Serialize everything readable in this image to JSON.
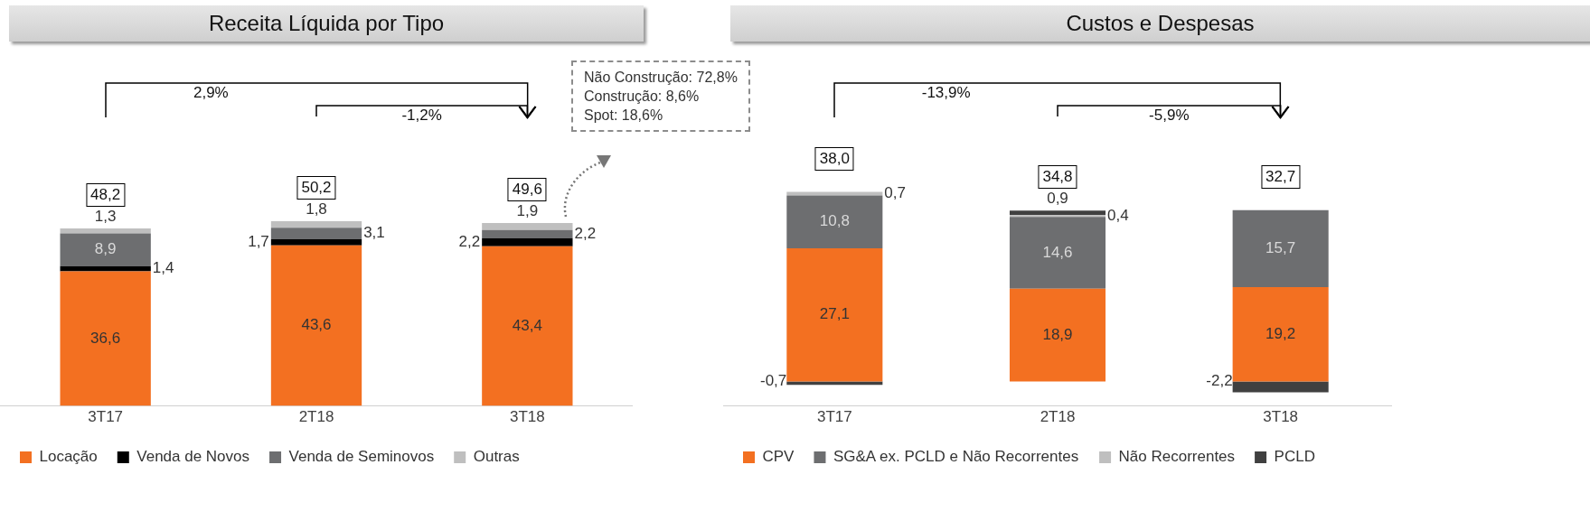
{
  "chart_data": [
    {
      "type": "bar",
      "title": "Receita Líquida por Tipo",
      "stacked": true,
      "legend": "bottom",
      "tick_labels": "x",
      "categories": [
        "3T17",
        "2T18",
        "3T18"
      ],
      "series": [
        {
          "name": "Locação",
          "color": "#f37021",
          "values": [
            36.6,
            43.6,
            43.4
          ],
          "value_labels": [
            "36,6",
            "43,6",
            "43,4"
          ]
        },
        {
          "name": "Venda de Novos",
          "color": "#000000",
          "values": [
            1.4,
            1.7,
            2.2
          ],
          "value_labels": [
            "1,4",
            "1,7",
            "2,2"
          ]
        },
        {
          "name": "Venda de Seminovos",
          "color": "#6d6e70",
          "values": [
            8.9,
            3.1,
            2.2
          ],
          "value_labels": [
            "8,9",
            "3,1",
            "2,2"
          ]
        },
        {
          "name": "Outras",
          "color": "#bfbfbf",
          "values": [
            1.3,
            1.8,
            1.9
          ],
          "value_labels": [
            "1,3",
            "1,8",
            "1,9"
          ]
        }
      ],
      "totals": [
        "48,2",
        "50,2",
        "49,6"
      ],
      "annotations": [
        "2,9%",
        "-1,2%",
        "Não Construção: 72,8%\nConstrução: 8,6%\nSpot: 18,6%"
      ]
    },
    {
      "type": "bar",
      "title": "Custos e Despesas",
      "stacked": true,
      "legend": "bottom",
      "tick_labels": "x",
      "categories": [
        "3T17",
        "2T18",
        "3T18"
      ],
      "series": [
        {
          "name": "CPV",
          "color": "#f37021",
          "values": [
            27.1,
            18.9,
            19.2
          ],
          "value_labels": [
            "27,1",
            "18,9",
            "19,2"
          ]
        },
        {
          "name": "SG&A ex. PCLD e Não Recorrentes",
          "color": "#6d6e70",
          "values": [
            10.8,
            14.6,
            15.7
          ],
          "value_labels": [
            "10,8",
            "14,6",
            "15,7"
          ]
        },
        {
          "name": "Não Recorrentes",
          "color": "#bfbfbf",
          "values": [
            0.7,
            0.4,
            null
          ],
          "value_labels": [
            "0,7",
            "0,4",
            null
          ]
        },
        {
          "name": "PCLD",
          "color": "#404040",
          "values": [
            -0.7,
            0.9,
            -2.2
          ],
          "value_labels": [
            "-0,7",
            "0,9",
            "-2,2"
          ]
        }
      ],
      "totals": [
        "38,0",
        "34,8",
        "32,7"
      ],
      "annotations": [
        "-13,9%",
        "-5,9%"
      ]
    }
  ]
}
